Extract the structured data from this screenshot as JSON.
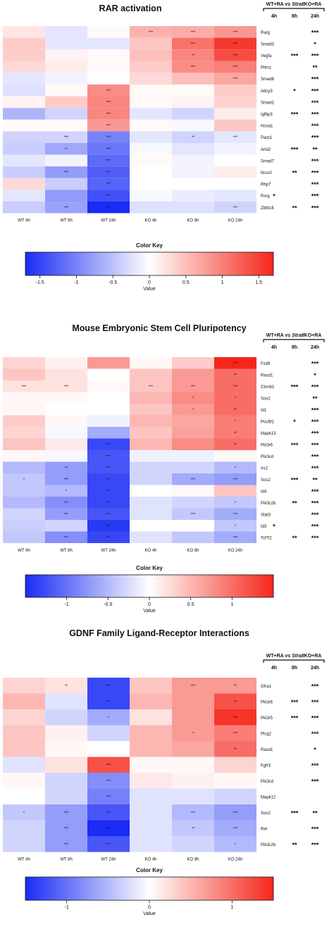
{
  "col_labels": [
    "WT 4h",
    "WT 8h",
    "WT 24h",
    "KO 4h",
    "KO 8h",
    "KO 24h"
  ],
  "comparison": {
    "header_prefix": "WT+RA vs ",
    "header_italic": "Stra8",
    "header_suffix": "KO+RA",
    "times": [
      "4h",
      "8h",
      "24h"
    ]
  },
  "colors": {
    "neg": "#1a2cf5",
    "mid": "#ffffff",
    "pos": "#f5261a"
  },
  "chart_data": [
    {
      "type": "heatmap",
      "title": "RAR activation",
      "rows": [
        "Rarg",
        "Smad3",
        "Vegfa",
        "Prkcz",
        "Smad6",
        "Adcy3",
        "Smad1",
        "Igfbp3",
        "Ncoa1",
        "Parp1",
        "Arid2",
        "Smad7",
        "Ncor2",
        "Rbp7",
        "Rxrg",
        "Zbtb16"
      ],
      "values": [
        [
          0.2,
          -0.2,
          0.05,
          0.6,
          0.65,
          0.8
        ],
        [
          0.4,
          -0.2,
          -0.2,
          0.45,
          1.1,
          1.55
        ],
        [
          0.4,
          0.1,
          0.05,
          0.5,
          0.95,
          1.4
        ],
        [
          0.3,
          0.15,
          0.05,
          0.4,
          0.9,
          1.0
        ],
        [
          -0.2,
          -0.1,
          0.0,
          0.3,
          0.5,
          0.7
        ],
        [
          -0.25,
          0.05,
          0.9,
          0.05,
          0.05,
          0.4
        ],
        [
          0.1,
          0.4,
          0.95,
          0.05,
          0.1,
          0.35
        ],
        [
          -0.6,
          -0.35,
          0.95,
          -0.2,
          -0.35,
          0.15
        ],
        [
          0.05,
          0.05,
          0.8,
          0.05,
          -0.05,
          0.45
        ],
        [
          -0.35,
          -0.35,
          -1.0,
          -0.2,
          -0.35,
          -0.2
        ],
        [
          -0.4,
          -0.7,
          -1.1,
          -0.05,
          -0.2,
          -0.1
        ],
        [
          -0.2,
          -0.1,
          -1.2,
          0.05,
          -0.1,
          0.0
        ],
        [
          -0.4,
          -0.8,
          -1.3,
          0.0,
          -0.1,
          0.15
        ],
        [
          0.3,
          -0.4,
          -1.25,
          0.0,
          0.0,
          0.0
        ],
        [
          -0.2,
          -0.8,
          -1.4,
          -0.05,
          -0.15,
          -0.2
        ],
        [
          -0.4,
          -0.75,
          -1.7,
          -0.25,
          -0.25,
          -0.35
        ]
      ],
      "stars": [
        [
          "",
          "",
          "",
          "***",
          "***",
          "***"
        ],
        [
          "",
          "",
          "",
          "",
          "***",
          "***"
        ],
        [
          "",
          "",
          "",
          "",
          "**",
          "***"
        ],
        [
          "",
          "",
          "",
          "",
          "***",
          "***"
        ],
        [
          "",
          "",
          "",
          "",
          "",
          "***"
        ],
        [
          "",
          "",
          "***",
          "",
          "",
          ""
        ],
        [
          "",
          "",
          "***",
          "",
          "",
          ""
        ],
        [
          "",
          "",
          "***",
          "",
          "",
          ""
        ],
        [
          "",
          "",
          "***",
          "",
          "",
          ""
        ],
        [
          "",
          "***",
          "***",
          "",
          "**",
          "***"
        ],
        [
          "",
          "**",
          "***",
          "",
          "",
          ""
        ],
        [
          "",
          "",
          "***",
          "",
          "",
          ""
        ],
        [
          "",
          "***",
          "***",
          "",
          "",
          ""
        ],
        [
          "",
          "",
          "***",
          "",
          "",
          ""
        ],
        [
          "",
          "",
          "***",
          "",
          "",
          ""
        ],
        [
          "",
          "***",
          "***",
          "",
          "",
          "***"
        ]
      ],
      "sig": [
        [
          "",
          "",
          "***"
        ],
        [
          "",
          "",
          "*"
        ],
        [
          "",
          "***",
          "***"
        ],
        [
          "",
          "",
          "**"
        ],
        [
          "",
          "",
          "***"
        ],
        [
          "",
          "*",
          "***"
        ],
        [
          "",
          "",
          "***"
        ],
        [
          "",
          "***",
          "***"
        ],
        [
          "",
          "",
          "***"
        ],
        [
          "",
          "",
          "***"
        ],
        [
          "",
          "***",
          "**"
        ],
        [
          "",
          "",
          "***"
        ],
        [
          "",
          "**",
          "***"
        ],
        [
          "",
          "",
          "***"
        ],
        [
          "*",
          "",
          "***"
        ],
        [
          "",
          "**",
          "***"
        ]
      ],
      "key": {
        "title": "Color Key",
        "label": "Value",
        "range": [
          -1.7,
          1.7
        ],
        "ticks": [
          "-1.5",
          "-1",
          "-0.5",
          "0",
          "0.5",
          "1",
          "1.5"
        ],
        "tick_values": [
          -1.5,
          -1,
          -0.5,
          0,
          0.5,
          1,
          1.5
        ]
      }
    },
    {
      "type": "heatmap",
      "title": "Mouse Embryonic Stem Cell Pluripotency",
      "rows": [
        "Fzd9",
        "Rasd1",
        "Ctnnb1",
        "Sox2",
        "Id1",
        "Pou5f1",
        "Mapk13",
        "Pik3r6",
        "Pik3cd",
        "Irs2",
        "Sos2",
        "Id4",
        "Pik3c2b",
        "Stat3",
        "Id3",
        "Tcf7l2"
      ],
      "values": [
        [
          0.3,
          0.1,
          0.7,
          0.05,
          0.35,
          1.5
        ],
        [
          0.4,
          0.2,
          0.0,
          0.4,
          0.7,
          1.0
        ],
        [
          0.2,
          0.2,
          0.05,
          0.4,
          0.7,
          1.0
        ],
        [
          0.05,
          0.05,
          0.0,
          0.5,
          0.8,
          1.0
        ],
        [
          0.05,
          0.0,
          0.0,
          0.4,
          0.7,
          1.0
        ],
        [
          0.35,
          0.05,
          -0.1,
          0.5,
          0.6,
          0.9
        ],
        [
          0.3,
          -0.05,
          -0.6,
          0.4,
          0.65,
          0.9
        ],
        [
          0.4,
          0.15,
          -1.3,
          0.5,
          0.8,
          1.0
        ],
        [
          0.05,
          -0.05,
          -1.2,
          -0.1,
          -0.1,
          0.05
        ],
        [
          -0.5,
          -0.7,
          -1.2,
          -0.3,
          -0.3,
          -0.5
        ],
        [
          -0.4,
          -0.7,
          -1.3,
          -0.3,
          -0.6,
          -0.7
        ],
        [
          -0.4,
          -0.5,
          -1.3,
          0.0,
          0.05,
          0.4
        ],
        [
          -0.5,
          -0.8,
          -1.3,
          -0.2,
          -0.3,
          -0.4
        ],
        [
          -0.3,
          -0.7,
          -1.2,
          -0.2,
          -0.4,
          -0.6
        ],
        [
          -0.35,
          -0.3,
          -1.4,
          0.0,
          0.0,
          -0.4
        ],
        [
          -0.4,
          -0.8,
          -1.3,
          -0.2,
          -0.4,
          -0.6
        ]
      ],
      "stars": [
        [
          "",
          "",
          "",
          "",
          "",
          "***"
        ],
        [
          "",
          "",
          "",
          "",
          "",
          "**"
        ],
        [
          "***",
          "***",
          "",
          "***",
          "***",
          "***"
        ],
        [
          "",
          "",
          "",
          "",
          "*",
          "*"
        ],
        [
          "",
          "",
          "",
          "",
          "*",
          "**"
        ],
        [
          "",
          "",
          "",
          "",
          "",
          "*"
        ],
        [
          "",
          "",
          "",
          "",
          "",
          "**"
        ],
        [
          "",
          "",
          "***",
          "",
          "",
          "**"
        ],
        [
          "",
          "",
          "***",
          "",
          "",
          ""
        ],
        [
          "",
          "**",
          "***",
          "",
          "",
          "*"
        ],
        [
          "*",
          "***",
          "***",
          "",
          "***",
          "***"
        ],
        [
          "",
          "*",
          "***",
          "",
          "",
          ""
        ],
        [
          "",
          "***",
          "***",
          "",
          "",
          "*"
        ],
        [
          "",
          "***",
          "***",
          "",
          "***",
          "***"
        ],
        [
          "",
          "",
          "***",
          "",
          "",
          "*"
        ],
        [
          "",
          "***",
          "***",
          "",
          "",
          "***"
        ]
      ],
      "sig": [
        [
          "",
          "",
          "***"
        ],
        [
          "",
          "",
          "*"
        ],
        [
          "",
          "***",
          "***"
        ],
        [
          "",
          "",
          "**"
        ],
        [
          "",
          "",
          "***"
        ],
        [
          "",
          "*",
          "***"
        ],
        [
          "",
          "",
          "***"
        ],
        [
          "",
          "***",
          "***"
        ],
        [
          "",
          "",
          "***"
        ],
        [
          "",
          "",
          "***"
        ],
        [
          "",
          "***",
          "**"
        ],
        [
          "",
          "",
          "***"
        ],
        [
          "",
          "**",
          "***"
        ],
        [
          "",
          "",
          "***"
        ],
        [
          "*",
          "",
          "***"
        ],
        [
          "",
          "**",
          "***"
        ]
      ],
      "key": {
        "title": "Color Key",
        "label": "Value",
        "range": [
          -1.5,
          1.5
        ],
        "ticks": [
          "-1",
          "-0.5",
          "0",
          "0.5",
          "1"
        ],
        "tick_values": [
          -1,
          -0.5,
          0,
          0.5,
          1
        ]
      }
    },
    {
      "type": "heatmap",
      "title": "GDNF Family Ligand-Receptor Interactions",
      "rows": [
        "Gfra1",
        "Pik3r6",
        "Pik3r5",
        "Plcg2",
        "Rasd1",
        "Fgfr3",
        "Pik3cd",
        "Mapk12",
        "Sos2",
        "Ret",
        "Pik3c2b"
      ],
      "values": [
        [
          0.3,
          0.2,
          -1.3,
          0.4,
          0.7,
          0.7
        ],
        [
          0.5,
          -0.2,
          -1.3,
          0.5,
          0.7,
          1.2
        ],
        [
          0.3,
          -0.3,
          -0.6,
          0.2,
          0.7,
          1.4
        ],
        [
          0.4,
          0.1,
          -0.3,
          0.5,
          0.7,
          0.9
        ],
        [
          0.4,
          0.05,
          0.0,
          0.5,
          0.6,
          1.0
        ],
        [
          -0.2,
          0.2,
          1.2,
          0.05,
          0.05,
          0.3
        ],
        [
          0.05,
          -0.3,
          -0.8,
          0.15,
          0.1,
          0.05
        ],
        [
          0.0,
          -0.3,
          -0.9,
          -0.2,
          -0.2,
          -0.3
        ],
        [
          -0.4,
          -0.7,
          -1.2,
          -0.2,
          -0.5,
          -0.7
        ],
        [
          -0.3,
          -0.7,
          -1.6,
          -0.2,
          -0.4,
          -0.6
        ],
        [
          -0.3,
          -0.7,
          -1.2,
          -0.2,
          -0.3,
          -0.5
        ]
      ],
      "stars": [
        [
          "",
          "**",
          "***",
          "",
          "***",
          "**"
        ],
        [
          "",
          "",
          "***",
          "",
          "",
          "**"
        ],
        [
          "",
          "",
          "*",
          "",
          "",
          "***"
        ],
        [
          "",
          "",
          "",
          "",
          "*",
          "***"
        ],
        [
          "",
          "",
          "",
          "",
          "",
          "**"
        ],
        [
          "",
          "",
          "***",
          "",
          "",
          ""
        ],
        [
          "",
          "",
          "***",
          "",
          "",
          ""
        ],
        [
          "",
          "",
          "***",
          "",
          "",
          ""
        ],
        [
          "*",
          "***",
          "***",
          "",
          "***",
          "***"
        ],
        [
          "",
          "***",
          "***",
          "",
          "**",
          "***"
        ],
        [
          "",
          "***",
          "***",
          "",
          "",
          "*"
        ]
      ],
      "sig": [
        [
          "",
          "",
          "***"
        ],
        [
          "",
          "***",
          "***"
        ],
        [
          "",
          "***",
          "***"
        ],
        [
          "",
          "",
          "***"
        ],
        [
          "",
          "",
          "*"
        ],
        [
          "",
          "",
          "***"
        ],
        [
          "",
          "",
          "***"
        ],
        [
          "",
          "",
          ""
        ],
        [
          "",
          "***",
          "**"
        ],
        [
          "",
          "",
          "***"
        ],
        [
          "",
          "**",
          "***"
        ]
      ],
      "key": {
        "title": "Color Key",
        "label": "Value",
        "range": [
          -1.5,
          1.5
        ],
        "ticks": [
          "-1",
          "0",
          "1"
        ],
        "tick_values": [
          -1,
          0,
          1
        ]
      }
    }
  ]
}
